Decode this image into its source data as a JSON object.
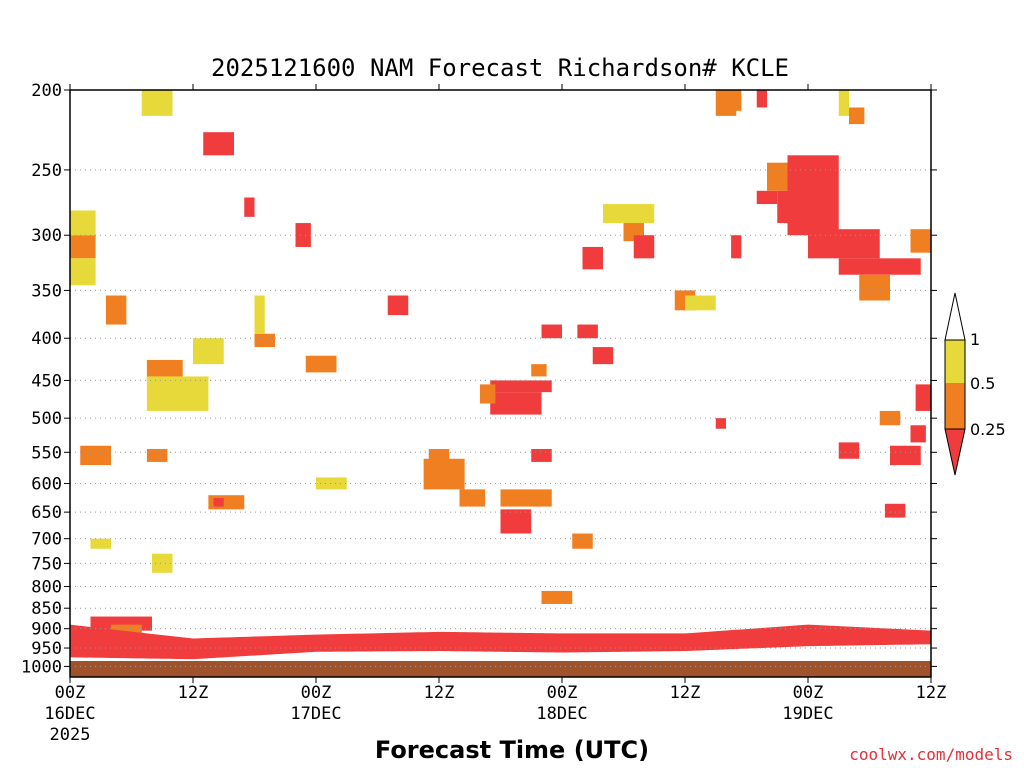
{
  "chart_data": {
    "type": "heatmap",
    "title": "2025121600 NAM Forecast Richardson# KCLE",
    "xlabel": "Forecast Time (UTC)",
    "ylabel": "",
    "credit": "coolwx.com/models",
    "y_axis": {
      "scale": "log-pressure",
      "range_hpa": [
        1030,
        200
      ],
      "ticks": [
        "200",
        "250",
        "300",
        "350",
        "400",
        "450",
        "500",
        "550",
        "600",
        "650",
        "700",
        "750",
        "800",
        "850",
        "900",
        "950",
        "1000"
      ]
    },
    "x_axis": {
      "range_hours": [
        0,
        84
      ],
      "ticks": [
        {
          "hour": 0,
          "label": "00Z",
          "sub": "16DEC",
          "sub2": "2025"
        },
        {
          "hour": 12,
          "label": "12Z",
          "sub": "",
          "sub2": ""
        },
        {
          "hour": 24,
          "label": "00Z",
          "sub": "17DEC",
          "sub2": ""
        },
        {
          "hour": 36,
          "label": "12Z",
          "sub": "",
          "sub2": ""
        },
        {
          "hour": 48,
          "label": "00Z",
          "sub": "18DEC",
          "sub2": ""
        },
        {
          "hour": 60,
          "label": "12Z",
          "sub": "",
          "sub2": ""
        },
        {
          "hour": 72,
          "label": "00Z",
          "sub": "19DEC",
          "sub2": ""
        },
        {
          "hour": 84,
          "label": "12Z",
          "sub": "",
          "sub2": ""
        }
      ]
    },
    "legend": {
      "placement": "right",
      "labels": [
        "1",
        "0.5",
        "0.25"
      ],
      "bins": [
        {
          "range": "< 0.25",
          "color": "#f03c3c"
        },
        {
          "range": "0.25 - 0.5",
          "color": "#f07f22"
        },
        {
          "range": "0.5 - 1",
          "color": "#e8d93a"
        },
        {
          "range": "> 1",
          "color": "#ffffff"
        }
      ]
    },
    "colors": {
      "low": "#f03c3c",
      "mid": "#f07f22",
      "high": "#e8d93a",
      "ground": "#a0522d"
    },
    "regions": [
      {
        "h": [
          0,
          2.5
        ],
        "p": [
          300,
          320
        ],
        "bin": "mid"
      },
      {
        "h": [
          0,
          2.5
        ],
        "p": [
          280,
          300
        ],
        "bin": "high"
      },
      {
        "h": [
          0,
          2.5
        ],
        "p": [
          320,
          345
        ],
        "bin": "high"
      },
      {
        "h": [
          3.5,
          5.5
        ],
        "p": [
          355,
          385
        ],
        "bin": "mid"
      },
      {
        "h": [
          7.5,
          11
        ],
        "p": [
          425,
          450
        ],
        "bin": "mid"
      },
      {
        "h": [
          7.5,
          13.5
        ],
        "p": [
          445,
          490
        ],
        "bin": "high"
      },
      {
        "h": [
          13,
          16
        ],
        "p": [
          225,
          240
        ],
        "bin": "low"
      },
      {
        "h": [
          17,
          18
        ],
        "p": [
          270,
          285
        ],
        "bin": "low"
      },
      {
        "h": [
          18,
          20
        ],
        "p": [
          395,
          410
        ],
        "bin": "mid"
      },
      {
        "h": [
          22,
          23.5
        ],
        "p": [
          290,
          310
        ],
        "bin": "low"
      },
      {
        "h": [
          23,
          26
        ],
        "p": [
          420,
          440
        ],
        "bin": "mid"
      },
      {
        "h": [
          31,
          33
        ],
        "p": [
          355,
          375
        ],
        "bin": "low"
      },
      {
        "h": [
          41,
          47
        ],
        "p": [
          450,
          465
        ],
        "bin": "low"
      },
      {
        "h": [
          41,
          46
        ],
        "p": [
          465,
          495
        ],
        "bin": "low"
      },
      {
        "h": [
          40,
          41.5
        ],
        "p": [
          455,
          480
        ],
        "bin": "mid"
      },
      {
        "h": [
          45,
          46.5
        ],
        "p": [
          430,
          445
        ],
        "bin": "mid"
      },
      {
        "h": [
          46,
          48
        ],
        "p": [
          385,
          400
        ],
        "bin": "low"
      },
      {
        "h": [
          49.5,
          51.5
        ],
        "p": [
          385,
          400
        ],
        "bin": "low"
      },
      {
        "h": [
          50,
          52
        ],
        "p": [
          310,
          330
        ],
        "bin": "low"
      },
      {
        "h": [
          51,
          53
        ],
        "p": [
          410,
          430
        ],
        "bin": "low"
      },
      {
        "h": [
          54,
          56
        ],
        "p": [
          285,
          305
        ],
        "bin": "mid"
      },
      {
        "h": [
          55,
          57
        ],
        "p": [
          300,
          320
        ],
        "bin": "low"
      },
      {
        "h": [
          59,
          61
        ],
        "p": [
          350,
          370
        ],
        "bin": "mid"
      },
      {
        "h": [
          63,
          64
        ],
        "p": [
          500,
          515
        ],
        "bin": "low"
      },
      {
        "h": [
          64.5,
          65.5
        ],
        "p": [
          300,
          320
        ],
        "bin": "low"
      },
      {
        "h": [
          67,
          69
        ],
        "p": [
          265,
          275
        ],
        "bin": "low"
      },
      {
        "h": [
          68,
          71
        ],
        "p": [
          245,
          265
        ],
        "bin": "mid"
      },
      {
        "h": [
          69,
          73
        ],
        "p": [
          265,
          290
        ],
        "bin": "low"
      },
      {
        "h": [
          70,
          75
        ],
        "p": [
          240,
          300
        ],
        "bin": "low"
      },
      {
        "h": [
          72,
          79
        ],
        "p": [
          295,
          320
        ],
        "bin": "low"
      },
      {
        "h": [
          75,
          83
        ],
        "p": [
          320,
          335
        ],
        "bin": "low"
      },
      {
        "h": [
          77,
          80
        ],
        "p": [
          335,
          360
        ],
        "bin": "mid"
      },
      {
        "h": [
          82,
          84
        ],
        "p": [
          295,
          315
        ],
        "bin": "mid"
      },
      {
        "h": [
          76,
          77.5
        ],
        "p": [
          210,
          220
        ],
        "bin": "mid"
      },
      {
        "h": [
          75,
          76
        ],
        "p": [
          200,
          215
        ],
        "bin": "high"
      },
      {
        "h": [
          63,
          65
        ],
        "p": [
          200,
          215
        ],
        "bin": "mid"
      },
      {
        "h": [
          64,
          65.5
        ],
        "p": [
          200,
          212
        ],
        "bin": "mid"
      },
      {
        "h": [
          67,
          68
        ],
        "p": [
          200,
          210
        ],
        "bin": "low"
      },
      {
        "h": [
          82,
          83.5
        ],
        "p": [
          510,
          535
        ],
        "bin": "low"
      },
      {
        "h": [
          79,
          81
        ],
        "p": [
          490,
          510
        ],
        "bin": "mid"
      },
      {
        "h": [
          80,
          83
        ],
        "p": [
          540,
          570
        ],
        "bin": "low"
      },
      {
        "h": [
          82.5,
          84
        ],
        "p": [
          455,
          490
        ],
        "bin": "low"
      },
      {
        "h": [
          75,
          77
        ],
        "p": [
          535,
          560
        ],
        "bin": "low"
      },
      {
        "h": [
          79.5,
          81.5
        ],
        "p": [
          635,
          660
        ],
        "bin": "low"
      },
      {
        "h": [
          1,
          4
        ],
        "p": [
          540,
          570
        ],
        "bin": "mid"
      },
      {
        "h": [
          7.5,
          9.5
        ],
        "p": [
          545,
          565
        ],
        "bin": "mid"
      },
      {
        "h": [
          13.5,
          17
        ],
        "p": [
          620,
          645
        ],
        "bin": "mid"
      },
      {
        "h": [
          14,
          15
        ],
        "p": [
          625,
          640
        ],
        "bin": "low"
      },
      {
        "h": [
          34.5,
          38.5
        ],
        "p": [
          560,
          610
        ],
        "bin": "mid"
      },
      {
        "h": [
          35,
          37
        ],
        "p": [
          545,
          570
        ],
        "bin": "mid"
      },
      {
        "h": [
          38,
          40.5
        ],
        "p": [
          610,
          640
        ],
        "bin": "mid"
      },
      {
        "h": [
          42,
          45
        ],
        "p": [
          645,
          690
        ],
        "bin": "low"
      },
      {
        "h": [
          42,
          47
        ],
        "p": [
          610,
          640
        ],
        "bin": "mid"
      },
      {
        "h": [
          45,
          47
        ],
        "p": [
          545,
          565
        ],
        "bin": "low"
      },
      {
        "h": [
          49,
          51
        ],
        "p": [
          690,
          720
        ],
        "bin": "mid"
      },
      {
        "h": [
          46,
          49
        ],
        "p": [
          810,
          840
        ],
        "bin": "mid"
      },
      {
        "h": [
          24,
          27
        ],
        "p": [
          590,
          610
        ],
        "bin": "high"
      },
      {
        "h": [
          8,
          10
        ],
        "p": [
          730,
          770
        ],
        "bin": "high"
      },
      {
        "h": [
          2,
          8
        ],
        "p": [
          870,
          905
        ],
        "bin": "low"
      },
      {
        "h": [
          4,
          7
        ],
        "p": [
          890,
          915
        ],
        "bin": "mid"
      },
      {
        "h": [
          2,
          4
        ],
        "p": [
          700,
          720
        ],
        "bin": "high"
      },
      {
        "h": [
          12,
          15
        ],
        "p": [
          400,
          430
        ],
        "bin": "high"
      },
      {
        "h": [
          7,
          10
        ],
        "p": [
          195,
          215
        ],
        "bin": "high"
      },
      {
        "h": [
          18,
          19
        ],
        "p": [
          355,
          395
        ],
        "bin": "high"
      },
      {
        "h": [
          52,
          57
        ],
        "p": [
          275,
          290
        ],
        "bin": "high"
      },
      {
        "h": [
          60,
          63
        ],
        "p": [
          355,
          370
        ],
        "bin": "high"
      }
    ],
    "ground_line_pressure": {
      "hours": [
        0,
        12,
        24,
        36,
        48,
        60,
        72,
        84
      ],
      "values": [
        975,
        980,
        960,
        958,
        962,
        958,
        945,
        940
      ]
    },
    "boundary_layer_top": {
      "hours": [
        0,
        12,
        24,
        36,
        48,
        60,
        72,
        84
      ],
      "values": [
        890,
        925,
        915,
        908,
        912,
        912,
        890,
        905
      ]
    }
  }
}
